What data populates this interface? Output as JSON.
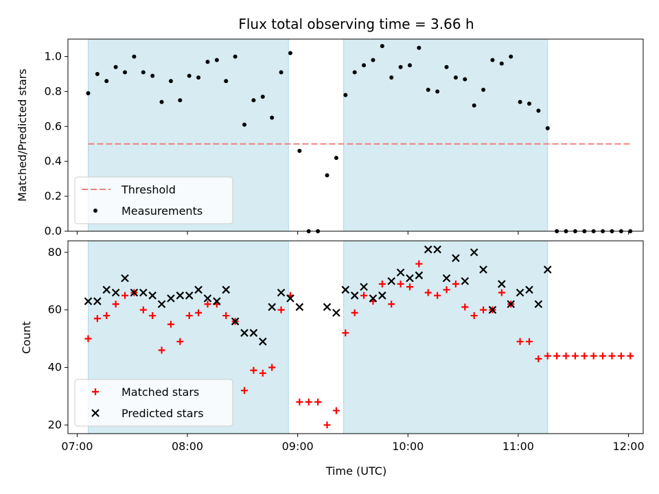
{
  "chart_data": {
    "title": "Flux total observing time = 3.66 h",
    "xlabel": "Time (UTC)",
    "x_ticks": [
      "07:00",
      "08:00",
      "09:00",
      "10:00",
      "11:00",
      "12:00"
    ],
    "xlim": [
      "06:55",
      "12:08"
    ],
    "shaded_intervals": [
      [
        "07:06",
        "08:55"
      ],
      [
        "09:25",
        "11:16"
      ]
    ],
    "shade_color": "#add8e6",
    "times": [
      "07:06",
      "07:11",
      "07:16",
      "07:21",
      "07:26",
      "07:31",
      "07:36",
      "07:41",
      "07:46",
      "07:51",
      "07:56",
      "08:01",
      "08:06",
      "08:11",
      "08:16",
      "08:21",
      "08:26",
      "08:31",
      "08:36",
      "08:41",
      "08:46",
      "08:51",
      "08:56",
      "09:01",
      "09:06",
      "09:11",
      "09:16",
      "09:21",
      "09:26",
      "09:31",
      "09:36",
      "09:41",
      "09:46",
      "09:51",
      "09:56",
      "10:01",
      "10:06",
      "10:11",
      "10:16",
      "10:21",
      "10:26",
      "10:31",
      "10:36",
      "10:41",
      "10:46",
      "10:51",
      "10:56",
      "11:01",
      "11:06",
      "11:11",
      "11:16",
      "11:21",
      "11:26",
      "11:31",
      "11:36",
      "11:41",
      "11:46",
      "11:51",
      "11:56",
      "12:01"
    ],
    "panels": [
      {
        "type": "scatter",
        "ylabel": "Matched/Predicted stars",
        "ylim": [
          0,
          1.1
        ],
        "y_ticks": [
          "0.0",
          "0.2",
          "0.4",
          "0.6",
          "0.8",
          "1.0"
        ],
        "threshold": 0.5,
        "legend_position": "lower-left",
        "legend": [
          "Threshold",
          "Measurements"
        ],
        "series": [
          {
            "name": "Measurements",
            "color": "#000000",
            "marker": "dot",
            "values": [
              0.79,
              0.9,
              0.86,
              0.94,
              0.91,
              1.0,
              0.91,
              0.89,
              0.74,
              0.86,
              0.75,
              0.89,
              0.88,
              0.97,
              0.98,
              0.86,
              1.0,
              0.61,
              0.75,
              0.77,
              0.65,
              0.91,
              1.02,
              0.46,
              0.0,
              0.0,
              0.32,
              0.42,
              0.78,
              0.91,
              0.95,
              0.98,
              1.06,
              0.88,
              0.94,
              0.95,
              1.05,
              0.81,
              0.8,
              0.94,
              0.88,
              0.87,
              0.72,
              0.81,
              0.98,
              0.96,
              1.0,
              0.74,
              0.73,
              0.69,
              0.59,
              0.0,
              0.0,
              0.0,
              0.0,
              0.0,
              0.0,
              0.0,
              0.0,
              0.0
            ]
          }
        ]
      },
      {
        "type": "scatter",
        "ylabel": "Count",
        "ylim": [
          17,
          84
        ],
        "y_ticks": [
          "20",
          "40",
          "60",
          "80"
        ],
        "legend_position": "lower-left",
        "legend": [
          "Matched stars",
          "Predicted stars"
        ],
        "series": [
          {
            "name": "Matched stars",
            "color": "#ff0000",
            "marker": "plus",
            "values": [
              50,
              57,
              58,
              62,
              65,
              66,
              60,
              58,
              46,
              55,
              49,
              58,
              59,
              62,
              62,
              58,
              56,
              32,
              39,
              38,
              40,
              60,
              65,
              28,
              28,
              28,
              20,
              25,
              52,
              59,
              65,
              63,
              69,
              62,
              69,
              68,
              76,
              66,
              65,
              67,
              69,
              61,
              58,
              60,
              60,
              66,
              62,
              49,
              49,
              43,
              44,
              44,
              44,
              44,
              44,
              44,
              44,
              44,
              44,
              44
            ]
          },
          {
            "name": "Predicted stars",
            "color": "#000000",
            "marker": "x",
            "values": [
              63,
              63,
              67,
              66,
              71,
              66,
              66,
              65,
              62,
              64,
              65,
              65,
              67,
              64,
              63,
              67,
              56,
              52,
              52,
              49,
              61,
              66,
              64,
              61,
              null,
              null,
              61,
              59,
              67,
              65,
              68,
              64,
              65,
              70,
              73,
              71,
              72,
              81,
              81,
              71,
              78,
              70,
              80,
              74,
              60,
              69,
              62,
              66,
              67,
              62,
              74,
              null,
              null,
              null,
              null,
              null,
              null,
              null,
              null,
              null
            ]
          }
        ]
      }
    ]
  }
}
